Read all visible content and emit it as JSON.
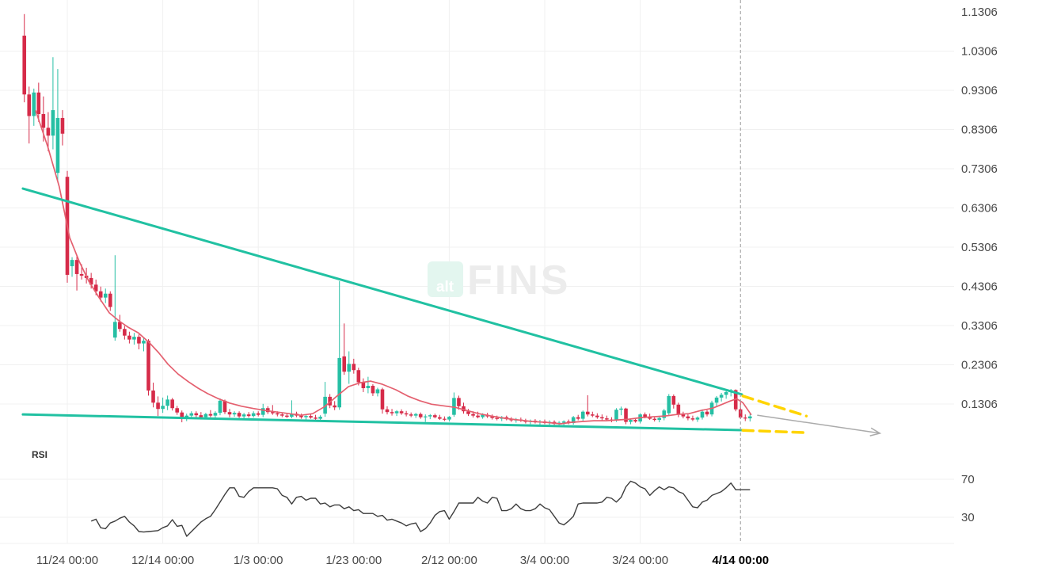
{
  "watermark": {
    "box_text": "alt",
    "brand_text": "FINS"
  },
  "colors": {
    "up": "#26bfa4",
    "down": "#d62b49",
    "ma_line": "#e4606f",
    "trendline": "#21c1a2",
    "projection": "#ffd400",
    "arrow": "#ababab",
    "rsi_line": "#3d3d3d",
    "grid": "#f0f0f0",
    "axis_text": "#474747",
    "bold_axis_text": "#000000",
    "marker_line": "#9a9a9a",
    "watermark_box": "#e3f6ef",
    "watermark_box_text": "#ffffff",
    "watermark_brand_text": "#ececec"
  },
  "chart_data": {
    "type": "candlestick",
    "title": "",
    "price_axis": {
      "tick_labels": [
        "1.1306",
        "1.0306",
        "0.9306",
        "0.8306",
        "0.7306",
        "0.6306",
        "0.5306",
        "0.4306",
        "0.3306",
        "0.2306",
        "0.1306"
      ],
      "tick_values": [
        1.1306,
        1.0306,
        0.9306,
        0.8306,
        0.7306,
        0.6306,
        0.5306,
        0.4306,
        0.3306,
        0.2306,
        0.1306
      ]
    },
    "time_axis": {
      "tick_labels": [
        {
          "label": "11/24 00:00",
          "day": 9,
          "bold": false
        },
        {
          "label": "12/14 00:00",
          "day": 29,
          "bold": false
        },
        {
          "label": "1/3 00:00",
          "day": 49,
          "bold": false
        },
        {
          "label": "1/23 00:00",
          "day": 69,
          "bold": false
        },
        {
          "label": "2/12 00:00",
          "day": 89,
          "bold": false
        },
        {
          "label": "3/4 00:00",
          "day": 109,
          "bold": false
        },
        {
          "label": "3/24 00:00",
          "day": 129,
          "bold": false
        },
        {
          "label": "4/14 00:00",
          "day": 150,
          "bold": true
        }
      ]
    },
    "marker_day": 150,
    "candles": [
      [
        1.07,
        1.125,
        0.9,
        0.92
      ],
      [
        0.92,
        0.94,
        0.795,
        0.865
      ],
      [
        0.865,
        0.935,
        0.84,
        0.925
      ],
      [
        0.925,
        0.95,
        0.85,
        0.87
      ],
      [
        0.87,
        0.915,
        0.8,
        0.835
      ],
      [
        0.835,
        0.875,
        0.775,
        0.815
      ],
      [
        0.815,
        1.015,
        0.78,
        0.88
      ],
      [
        0.72,
        0.985,
        0.7,
        0.86
      ],
      [
        0.86,
        0.88,
        0.79,
        0.82
      ],
      [
        0.71,
        0.725,
        0.44,
        0.46
      ],
      [
        0.482,
        0.505,
        0.455,
        0.498
      ],
      [
        0.498,
        0.51,
        0.42,
        0.462
      ],
      [
        0.462,
        0.487,
        0.448,
        0.458
      ],
      [
        0.458,
        0.478,
        0.438,
        0.452
      ],
      [
        0.452,
        0.465,
        0.425,
        0.435
      ],
      [
        0.435,
        0.448,
        0.408,
        0.418
      ],
      [
        0.418,
        0.43,
        0.392,
        0.402
      ],
      [
        0.402,
        0.425,
        0.388,
        0.412
      ],
      [
        0.412,
        0.418,
        0.368,
        0.378
      ],
      [
        0.3,
        0.51,
        0.292,
        0.34
      ],
      [
        0.34,
        0.358,
        0.315,
        0.322
      ],
      [
        0.322,
        0.33,
        0.295,
        0.305
      ],
      [
        0.305,
        0.315,
        0.285,
        0.295
      ],
      [
        0.295,
        0.312,
        0.282,
        0.302
      ],
      [
        0.302,
        0.308,
        0.27,
        0.285
      ],
      [
        0.285,
        0.3,
        0.265,
        0.292
      ],
      [
        0.292,
        0.296,
        0.152,
        0.165
      ],
      [
        0.165,
        0.185,
        0.122,
        0.134
      ],
      [
        0.134,
        0.15,
        0.1,
        0.118
      ],
      [
        0.118,
        0.147,
        0.108,
        0.126
      ],
      [
        0.126,
        0.152,
        0.115,
        0.142
      ],
      [
        0.142,
        0.146,
        0.114,
        0.12
      ],
      [
        0.12,
        0.126,
        0.103,
        0.109
      ],
      [
        0.109,
        0.114,
        0.084,
        0.094
      ],
      [
        0.094,
        0.106,
        0.087,
        0.101
      ],
      [
        0.101,
        0.112,
        0.094,
        0.107
      ],
      [
        0.107,
        0.112,
        0.097,
        0.102
      ],
      [
        0.102,
        0.11,
        0.091,
        0.097
      ],
      [
        0.097,
        0.108,
        0.093,
        0.105
      ],
      [
        0.105,
        0.115,
        0.097,
        0.101
      ],
      [
        0.101,
        0.112,
        0.095,
        0.108
      ],
      [
        0.108,
        0.145,
        0.102,
        0.139
      ],
      [
        0.139,
        0.142,
        0.105,
        0.11
      ],
      [
        0.11,
        0.118,
        0.097,
        0.104
      ],
      [
        0.104,
        0.112,
        0.098,
        0.108
      ],
      [
        0.108,
        0.112,
        0.095,
        0.099
      ],
      [
        0.099,
        0.108,
        0.093,
        0.104
      ],
      [
        0.104,
        0.11,
        0.096,
        0.1
      ],
      [
        0.1,
        0.112,
        0.096,
        0.107
      ],
      [
        0.107,
        0.112,
        0.099,
        0.103
      ],
      [
        0.103,
        0.131,
        0.097,
        0.12
      ],
      [
        0.12,
        0.125,
        0.105,
        0.11
      ],
      [
        0.11,
        0.128,
        0.103,
        0.107
      ],
      [
        0.107,
        0.112,
        0.099,
        0.104
      ],
      [
        0.104,
        0.109,
        0.097,
        0.101
      ],
      [
        0.101,
        0.107,
        0.095,
        0.098
      ],
      [
        0.098,
        0.14,
        0.094,
        0.106
      ],
      [
        0.106,
        0.111,
        0.097,
        0.101
      ],
      [
        0.101,
        0.106,
        0.093,
        0.097
      ],
      [
        0.097,
        0.104,
        0.089,
        0.1
      ],
      [
        0.1,
        0.106,
        0.093,
        0.096
      ],
      [
        0.096,
        0.103,
        0.089,
        0.093
      ],
      [
        0.093,
        0.102,
        0.087,
        0.098
      ],
      [
        0.106,
        0.187,
        0.098,
        0.149
      ],
      [
        0.149,
        0.156,
        0.12,
        0.127
      ],
      [
        0.127,
        0.138,
        0.115,
        0.122
      ],
      [
        0.122,
        0.444,
        0.116,
        0.248
      ],
      [
        0.252,
        0.336,
        0.205,
        0.213
      ],
      [
        0.213,
        0.265,
        0.182,
        0.233
      ],
      [
        0.233,
        0.246,
        0.208,
        0.217
      ],
      [
        0.217,
        0.223,
        0.178,
        0.186
      ],
      [
        0.186,
        0.196,
        0.161,
        0.171
      ],
      [
        0.171,
        0.2,
        0.158,
        0.177
      ],
      [
        0.177,
        0.181,
        0.151,
        0.158
      ],
      [
        0.158,
        0.172,
        0.15,
        0.168
      ],
      [
        0.168,
        0.172,
        0.106,
        0.117
      ],
      [
        0.117,
        0.125,
        0.104,
        0.11
      ],
      [
        0.11,
        0.118,
        0.101,
        0.107
      ],
      [
        0.107,
        0.115,
        0.1,
        0.112
      ],
      [
        0.112,
        0.117,
        0.103,
        0.107
      ],
      [
        0.107,
        0.113,
        0.099,
        0.104
      ],
      [
        0.104,
        0.109,
        0.097,
        0.101
      ],
      [
        0.101,
        0.108,
        0.095,
        0.105
      ],
      [
        0.105,
        0.109,
        0.093,
        0.097
      ],
      [
        0.097,
        0.104,
        0.085,
        0.099
      ],
      [
        0.099,
        0.105,
        0.092,
        0.102
      ],
      [
        0.102,
        0.106,
        0.094,
        0.097
      ],
      [
        0.097,
        0.103,
        0.09,
        0.093
      ],
      [
        0.093,
        0.099,
        0.087,
        0.091
      ],
      [
        0.091,
        0.1,
        0.086,
        0.098
      ],
      [
        0.103,
        0.16,
        0.098,
        0.146
      ],
      [
        0.146,
        0.152,
        0.116,
        0.125
      ],
      [
        0.125,
        0.134,
        0.106,
        0.112
      ],
      [
        0.112,
        0.118,
        0.1,
        0.105
      ],
      [
        0.105,
        0.112,
        0.096,
        0.101
      ],
      [
        0.101,
        0.111,
        0.094,
        0.097
      ],
      [
        0.097,
        0.107,
        0.093,
        0.103
      ],
      [
        0.103,
        0.108,
        0.095,
        0.099
      ],
      [
        0.099,
        0.104,
        0.091,
        0.095
      ],
      [
        0.095,
        0.101,
        0.089,
        0.093
      ],
      [
        0.093,
        0.1,
        0.087,
        0.097
      ],
      [
        0.097,
        0.101,
        0.089,
        0.092
      ],
      [
        0.092,
        0.097,
        0.085,
        0.089
      ],
      [
        0.089,
        0.095,
        0.083,
        0.091
      ],
      [
        0.091,
        0.096,
        0.085,
        0.088
      ],
      [
        0.088,
        0.093,
        0.081,
        0.085
      ],
      [
        0.085,
        0.091,
        0.079,
        0.088
      ],
      [
        0.088,
        0.092,
        0.081,
        0.084
      ],
      [
        0.084,
        0.09,
        0.078,
        0.086
      ],
      [
        0.086,
        0.091,
        0.079,
        0.082
      ],
      [
        0.082,
        0.089,
        0.076,
        0.085
      ],
      [
        0.085,
        0.089,
        0.077,
        0.08
      ],
      [
        0.08,
        0.087,
        0.074,
        0.083
      ],
      [
        0.083,
        0.089,
        0.077,
        0.086
      ],
      [
        0.086,
        0.091,
        0.079,
        0.082
      ],
      [
        0.082,
        0.1,
        0.078,
        0.097
      ],
      [
        0.097,
        0.103,
        0.089,
        0.093
      ],
      [
        0.093,
        0.114,
        0.088,
        0.111
      ],
      [
        0.111,
        0.153,
        0.099,
        0.104
      ],
      [
        0.104,
        0.111,
        0.097,
        0.101
      ],
      [
        0.101,
        0.107,
        0.093,
        0.097
      ],
      [
        0.097,
        0.104,
        0.089,
        0.094
      ],
      [
        0.094,
        0.101,
        0.087,
        0.091
      ],
      [
        0.091,
        0.097,
        0.084,
        0.089
      ],
      [
        0.089,
        0.12,
        0.085,
        0.116
      ],
      [
        0.116,
        0.124,
        0.102,
        0.119
      ],
      [
        0.119,
        0.121,
        0.079,
        0.085
      ],
      [
        0.085,
        0.094,
        0.079,
        0.09
      ],
      [
        0.09,
        0.095,
        0.083,
        0.086
      ],
      [
        0.086,
        0.107,
        0.081,
        0.104
      ],
      [
        0.104,
        0.109,
        0.094,
        0.098
      ],
      [
        0.098,
        0.106,
        0.09,
        0.093
      ],
      [
        0.093,
        0.099,
        0.086,
        0.09
      ],
      [
        0.09,
        0.097,
        0.084,
        0.095
      ],
      [
        0.095,
        0.118,
        0.089,
        0.114
      ],
      [
        0.107,
        0.156,
        0.102,
        0.151
      ],
      [
        0.151,
        0.155,
        0.119,
        0.129
      ],
      [
        0.129,
        0.134,
        0.097,
        0.104
      ],
      [
        0.104,
        0.111,
        0.094,
        0.099
      ],
      [
        0.099,
        0.105,
        0.089,
        0.094
      ],
      [
        0.094,
        0.101,
        0.087,
        0.091
      ],
      [
        0.091,
        0.099,
        0.085,
        0.096
      ],
      [
        0.096,
        0.117,
        0.091,
        0.111
      ],
      [
        0.111,
        0.115,
        0.099,
        0.104
      ],
      [
        0.104,
        0.139,
        0.099,
        0.134
      ],
      [
        0.134,
        0.151,
        0.124,
        0.147
      ],
      [
        0.147,
        0.159,
        0.137,
        0.154
      ],
      [
        0.154,
        0.164,
        0.144,
        0.161
      ],
      [
        0.161,
        0.169,
        0.15,
        0.166
      ],
      [
        0.166,
        0.168,
        0.112,
        0.117
      ],
      [
        0.117,
        0.135,
        0.092,
        0.096
      ],
      [
        0.096,
        0.104,
        0.087,
        0.094
      ],
      [
        0.094,
        0.106,
        0.086,
        0.099
      ]
    ],
    "overlays": {
      "ma": [
        [
          2.4,
          0.878
        ],
        [
          4.9,
          0.787
        ],
        [
          7.3,
          0.686
        ],
        [
          9.5,
          0.555
        ],
        [
          11.5,
          0.494
        ],
        [
          13.5,
          0.444
        ],
        [
          15.6,
          0.403
        ],
        [
          17.8,
          0.363
        ],
        [
          19.8,
          0.343
        ],
        [
          21.8,
          0.326
        ],
        [
          23.9,
          0.312
        ],
        [
          26.1,
          0.288
        ],
        [
          28.1,
          0.262
        ],
        [
          30.1,
          0.232
        ],
        [
          32.2,
          0.207
        ],
        [
          34.4,
          0.187
        ],
        [
          36.4,
          0.171
        ],
        [
          38.4,
          0.157
        ],
        [
          40.5,
          0.145
        ],
        [
          43,
          0.133
        ],
        [
          45.5,
          0.125
        ],
        [
          48,
          0.119
        ],
        [
          50.5,
          0.114
        ],
        [
          53,
          0.11
        ],
        [
          55.5,
          0.106
        ],
        [
          57.9,
          0.102
        ],
        [
          60.4,
          0.106
        ],
        [
          62.9,
          0.124
        ],
        [
          65.4,
          0.15
        ],
        [
          67.9,
          0.175
        ],
        [
          70.4,
          0.185
        ],
        [
          72.5,
          0.189
        ],
        [
          75,
          0.181
        ],
        [
          77.8,
          0.167
        ],
        [
          80.3,
          0.151
        ],
        [
          82.8,
          0.139
        ],
        [
          85.3,
          0.13
        ],
        [
          87.8,
          0.126
        ],
        [
          90.3,
          0.122
        ],
        [
          92.7,
          0.114
        ],
        [
          95.2,
          0.106
        ],
        [
          97.7,
          0.1
        ],
        [
          100.7,
          0.094
        ],
        [
          103.5,
          0.09
        ],
        [
          106.4,
          0.086
        ],
        [
          109.3,
          0.084
        ],
        [
          112.3,
          0.08
        ],
        [
          114.6,
          0.084
        ],
        [
          116.8,
          0.086
        ],
        [
          119.3,
          0.088
        ],
        [
          121.8,
          0.088
        ],
        [
          124.3,
          0.09
        ],
        [
          126.7,
          0.092
        ],
        [
          129.2,
          0.096
        ],
        [
          131.7,
          0.098
        ],
        [
          134.2,
          0.1
        ],
        [
          136.7,
          0.104
        ],
        [
          139.2,
          0.106
        ],
        [
          141.7,
          0.114
        ],
        [
          144.2,
          0.12
        ],
        [
          146.2,
          0.13
        ],
        [
          147.8,
          0.138
        ],
        [
          149.2,
          0.144
        ],
        [
          150.5,
          0.134
        ],
        [
          152.2,
          0.104
        ]
      ],
      "trendlines": [
        {
          "name": "upper-trendline",
          "from": [
            -0.3,
            0.68
          ],
          "to": [
            150.3,
            0.155
          ]
        },
        {
          "name": "lower-trendline",
          "from": [
            -0.3,
            0.104
          ],
          "to": [
            150.3,
            0.064
          ]
        }
      ],
      "projections": [
        {
          "name": "upper-projection",
          "from": [
            150.5,
            0.151
          ],
          "to": [
            163.8,
            0.1
          ]
        },
        {
          "name": "lower-projection",
          "from": [
            150.5,
            0.0635
          ],
          "to": [
            163.8,
            0.0575
          ]
        }
      ],
      "arrow": {
        "from": [
          153.5,
          0.102
        ],
        "to": [
          179.2,
          0.056
        ]
      }
    },
    "rsi_pane": {
      "label": "RSI",
      "levels": [
        {
          "label": "70",
          "value": 70
        },
        {
          "label": "30",
          "value": 30
        }
      ],
      "start_index": 14,
      "values": [
        26,
        28,
        19,
        18,
        24,
        26,
        29,
        31,
        25,
        21,
        15,
        14.5,
        15,
        15.5,
        16,
        19,
        21,
        27.5,
        20.5,
        21.5,
        10,
        15,
        20,
        25,
        28.5,
        31,
        38,
        46,
        54,
        61,
        61,
        52,
        51,
        57,
        61,
        61,
        61,
        61,
        61,
        60,
        53,
        51,
        44,
        51,
        52,
        48,
        50,
        50,
        44,
        45,
        41,
        43,
        43,
        39,
        41,
        37,
        38,
        34,
        34,
        34,
        31,
        32,
        27,
        28,
        26,
        24,
        21,
        23,
        24,
        15,
        18,
        24,
        32,
        36,
        37,
        28,
        36,
        45,
        45,
        45,
        45,
        51,
        47,
        45,
        51,
        50,
        37,
        37,
        39,
        44,
        39,
        37,
        37,
        39,
        44,
        40,
        38,
        31,
        24,
        22,
        26,
        31,
        44,
        45,
        45,
        45,
        45,
        46,
        51,
        50,
        46,
        51,
        62,
        68,
        66,
        62,
        60,
        53,
        58,
        62,
        59,
        62,
        61,
        57,
        55,
        48,
        41,
        40,
        46,
        48,
        53,
        55,
        57,
        61,
        66,
        59,
        59,
        59,
        59
      ]
    }
  }
}
